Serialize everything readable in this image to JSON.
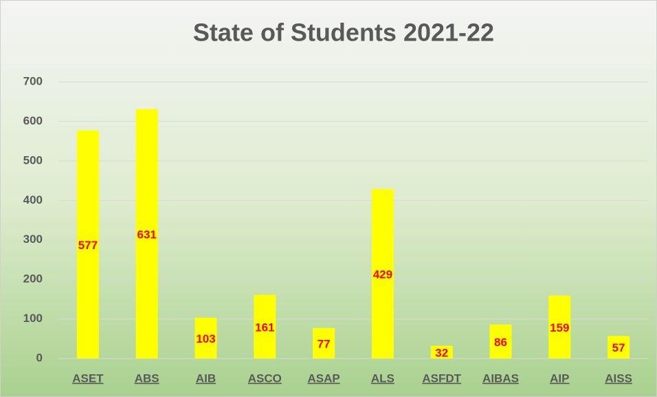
{
  "chart_data": {
    "type": "bar",
    "title": "State of Students 2021-22",
    "categories": [
      "ASET",
      "ABS",
      "AIB",
      "ASCO",
      "ASAP",
      "ALS",
      "ASFDT",
      "AIBAS",
      "AIP",
      "AISS"
    ],
    "values": [
      577,
      631,
      103,
      161,
      77,
      429,
      32,
      86,
      159,
      57
    ],
    "color": "#ffff00",
    "label_color": "#ff0000",
    "ylim": [
      0,
      700
    ],
    "yticks": [
      0,
      100,
      200,
      300,
      400,
      500,
      600,
      700
    ],
    "grid": true
  }
}
